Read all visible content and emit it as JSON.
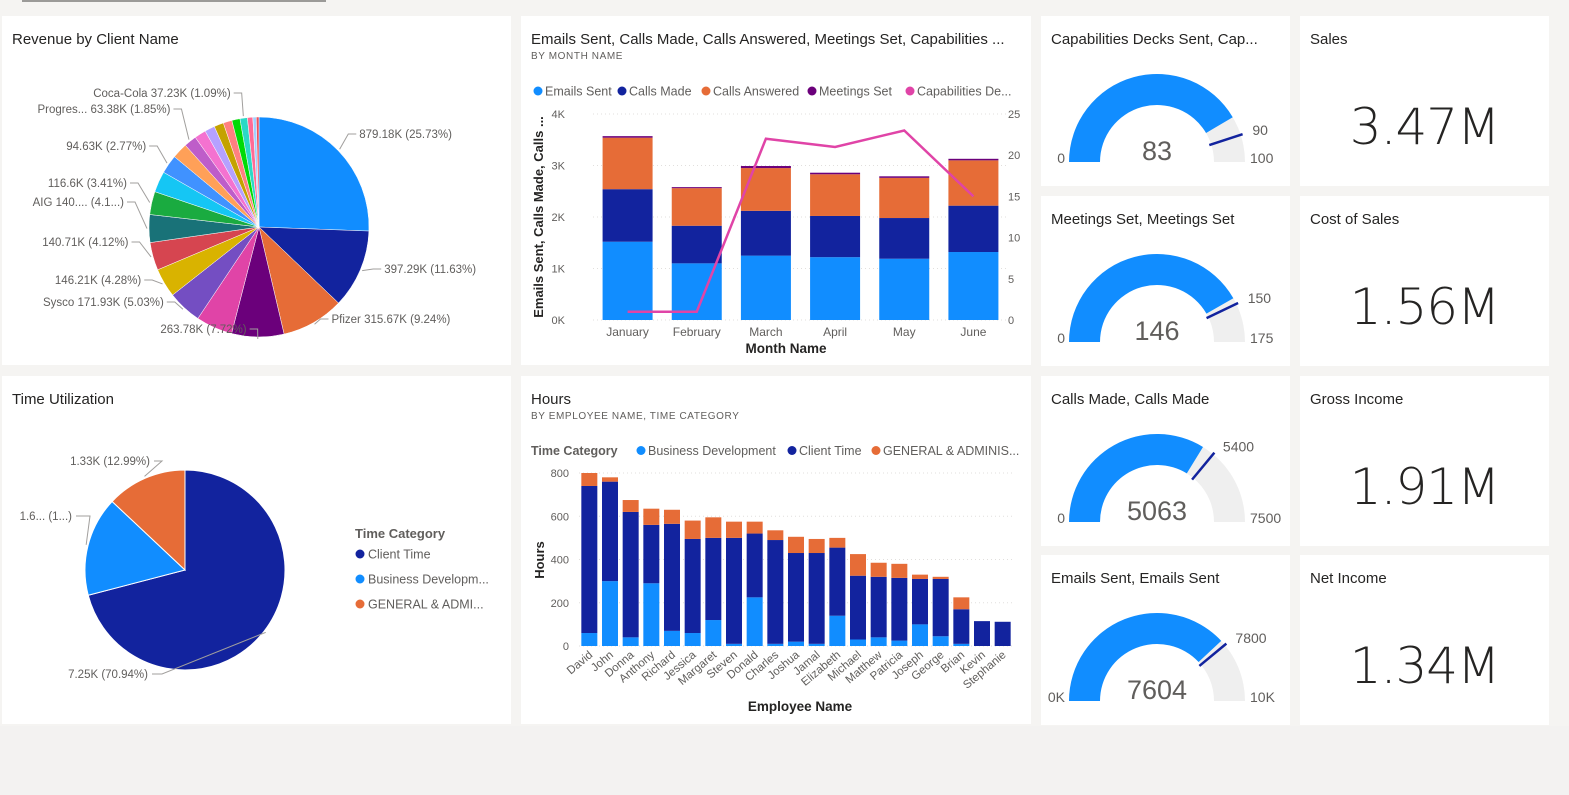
{
  "tiles": {
    "revenue": {
      "title": "Revenue by Client Name"
    },
    "emails_chart": {
      "title": "Emails Sent, Calls Made, Calls Answered, Meetings Set, Capabilities ...",
      "subtitle": "BY MONTH NAME"
    },
    "time_util": {
      "title": "Time Utilization"
    },
    "hours": {
      "title": "Hours",
      "subtitle": "BY EMPLOYEE NAME, TIME CATEGORY"
    },
    "gauge_capabilities": {
      "title": "Capabilities Decks Sent, Cap..."
    },
    "gauge_meetings": {
      "title": "Meetings Set, Meetings Set"
    },
    "gauge_calls": {
      "title": "Calls Made, Calls Made"
    },
    "gauge_emails": {
      "title": "Emails Sent, Emails Sent"
    },
    "card_sales": {
      "title": "Sales",
      "value": "3.47M"
    },
    "card_cost": {
      "title": "Cost of Sales",
      "value": "1.56M"
    },
    "card_gross": {
      "title": "Gross Income",
      "value": "1.91M"
    },
    "card_net": {
      "title": "Net Income",
      "value": "1.34M"
    }
  },
  "colors": {
    "light_blue": "#118dff",
    "dark_blue": "#12239e",
    "orange": "#e66c37",
    "purple": "#6b007b",
    "pink": "#e044a7",
    "gauge_track": "#efefef",
    "gauge_target": "#12239e"
  },
  "chart_data": [
    {
      "id": "revenue_pie",
      "type": "pie",
      "title": "Revenue by Client Name",
      "slices": [
        {
          "label": "879.18K (25.73%)",
          "value": 25.73,
          "color": "#118dff",
          "show_label": true
        },
        {
          "label": "397.29K (11.63%)",
          "value": 11.63,
          "color": "#12239e",
          "show_label": true
        },
        {
          "label": "Pfizer 315.67K (9.24%)",
          "value": 9.24,
          "color": "#e66c37",
          "show_label": true
        },
        {
          "label": "263.78K (7.72%)",
          "value": 7.72,
          "color": "#6b007b",
          "show_label": true
        },
        {
          "label": "",
          "value": 5.4,
          "color": "#e044a7",
          "show_label": false
        },
        {
          "label": "Sysco 171.93K (5.03%)",
          "value": 5.03,
          "color": "#744ec2",
          "show_label": true
        },
        {
          "label": "146.21K (4.28%)",
          "value": 4.28,
          "color": "#d9b300",
          "show_label": true
        },
        {
          "label": "140.71K (4.12%)",
          "value": 4.12,
          "color": "#d64550",
          "show_label": true
        },
        {
          "label": "AIG 140.... (4.1...)",
          "value": 4.1,
          "color": "#197278",
          "show_label": true
        },
        {
          "label": "116.6K (3.41%)",
          "value": 3.41,
          "color": "#1aab40",
          "show_label": true
        },
        {
          "label": "",
          "value": 3.1,
          "color": "#15c6f4",
          "show_label": false
        },
        {
          "label": "94.63K (2.77%)",
          "value": 2.77,
          "color": "#4092ff",
          "show_label": true
        },
        {
          "label": "",
          "value": 2.3,
          "color": "#ffa058",
          "show_label": false
        },
        {
          "label": "Progres... 63.38K (1.85%)",
          "value": 1.85,
          "color": "#be5dc9",
          "show_label": true
        },
        {
          "label": "",
          "value": 1.7,
          "color": "#f472d0",
          "show_label": false
        },
        {
          "label": "",
          "value": 1.5,
          "color": "#b5a1ff",
          "show_label": false
        },
        {
          "label": "",
          "value": 1.4,
          "color": "#c4a200",
          "show_label": false
        },
        {
          "label": "",
          "value": 1.3,
          "color": "#ff8080",
          "show_label": false
        },
        {
          "label": "",
          "value": 1.2,
          "color": "#00db05",
          "show_label": false
        },
        {
          "label": "Coca-Cola 37.23K (1.09%)",
          "value": 1.09,
          "color": "#2bd9c6",
          "show_label": true
        },
        {
          "label": "",
          "value": 0.8,
          "color": "#ff6b95",
          "show_label": false
        },
        {
          "label": "",
          "value": 0.5,
          "color": "#a0d1ff",
          "show_label": false
        },
        {
          "label": "",
          "value": 0.4,
          "color": "#e9535f",
          "show_label": false
        }
      ]
    },
    {
      "id": "activity_combo",
      "type": "bar",
      "title": "Emails Sent, Calls Made, Calls Answered, Meetings Set, Capabilities ...",
      "subtitle": "BY MONTH NAME",
      "xlabel": "Month Name",
      "ylabel": "Emails Sent, Calls Made, Calls ...",
      "categories": [
        "January",
        "February",
        "March",
        "April",
        "May",
        "June"
      ],
      "ylim": [
        0,
        4000
      ],
      "yticks": [
        "0K",
        "1K",
        "2K",
        "3K",
        "4K"
      ],
      "y2lim": [
        0,
        25
      ],
      "y2ticks": [
        "0",
        "5",
        "10",
        "15",
        "20",
        "25"
      ],
      "legend": [
        "Emails Sent",
        "Calls Made",
        "Calls Answered",
        "Meetings Set",
        "Capabilities De..."
      ],
      "series": [
        {
          "name": "Emails Sent",
          "color": "#118dff",
          "values": [
            1520,
            1100,
            1250,
            1220,
            1190,
            1320
          ]
        },
        {
          "name": "Calls Made",
          "color": "#12239e",
          "values": [
            1020,
            730,
            870,
            800,
            790,
            900
          ]
        },
        {
          "name": "Calls Answered",
          "color": "#e66c37",
          "values": [
            1000,
            730,
            830,
            810,
            780,
            880
          ]
        },
        {
          "name": "Meetings Set",
          "color": "#6b007b",
          "values": [
            30,
            20,
            40,
            30,
            30,
            30
          ]
        }
      ],
      "line_series": {
        "name": "Capabilities De...",
        "color": "#e044a7",
        "values": [
          1,
          1,
          22,
          21,
          23,
          15
        ],
        "axis": "secondary"
      }
    },
    {
      "id": "time_pie",
      "type": "pie",
      "title": "Time Utilization",
      "legend_title": "Time Category",
      "legend": [
        "Client Time",
        "Business Developm...",
        "GENERAL & ADMI..."
      ],
      "slices": [
        {
          "label": "7.25K (70.94%)",
          "value": 70.94,
          "color": "#12239e"
        },
        {
          "label": "1.6... (1...)",
          "value": 16.07,
          "color": "#118dff"
        },
        {
          "label": "1.33K (12.99%)",
          "value": 12.99,
          "color": "#e66c37"
        }
      ]
    },
    {
      "id": "hours_stacked",
      "type": "bar",
      "title": "Hours",
      "subtitle": "BY EMPLOYEE NAME, TIME CATEGORY",
      "xlabel": "Employee Name",
      "ylabel": "Hours",
      "legend_title": "Time Category",
      "legend": [
        "Business Development",
        "Client Time",
        "GENERAL & ADMINIS..."
      ],
      "ylim": [
        0,
        800
      ],
      "yticks": [
        "0",
        "200",
        "400",
        "600",
        "800"
      ],
      "categories": [
        "David",
        "John",
        "Donna",
        "Anthony",
        "Richard",
        "Jessica",
        "Margaret",
        "Steven",
        "Donald",
        "Charles",
        "Joshua",
        "Jamal",
        "Elizabeth",
        "Michael",
        "Matthew",
        "Patricia",
        "Joseph",
        "George",
        "Brian",
        "Kevin",
        "Stephanie"
      ],
      "series": [
        {
          "name": "Business Development",
          "color": "#118dff",
          "values": [
            60,
            300,
            40,
            290,
            70,
            60,
            120,
            10,
            225,
            10,
            20,
            10,
            140,
            30,
            40,
            25,
            100,
            45,
            10,
            0,
            0
          ]
        },
        {
          "name": "Client Time",
          "color": "#12239e",
          "values": [
            680,
            460,
            580,
            270,
            495,
            435,
            380,
            490,
            295,
            480,
            410,
            420,
            315,
            295,
            280,
            290,
            210,
            265,
            160,
            115,
            112
          ]
        },
        {
          "name": "GENERAL & ADMINIS...",
          "color": "#e66c37",
          "values": [
            60,
            20,
            55,
            75,
            65,
            85,
            95,
            75,
            55,
            45,
            75,
            65,
            45,
            100,
            65,
            65,
            20,
            10,
            55,
            0,
            0
          ]
        }
      ]
    },
    {
      "id": "gauge_capabilities",
      "type": "gauge",
      "value": 83,
      "min": 0,
      "max": 100,
      "target": 90,
      "value_label": "83",
      "min_label": "0",
      "max_label": "100",
      "target_label": "90"
    },
    {
      "id": "gauge_meetings",
      "type": "gauge",
      "value": 146,
      "min": 0,
      "max": 175,
      "target": 150,
      "value_label": "146",
      "min_label": "0",
      "max_label": "175",
      "target_label": "150"
    },
    {
      "id": "gauge_calls",
      "type": "gauge",
      "value": 5063,
      "min": 0,
      "max": 7500,
      "target": 5400,
      "value_label": "5063",
      "min_label": "0",
      "max_label": "7500",
      "target_label": "5400"
    },
    {
      "id": "gauge_emails",
      "type": "gauge",
      "value": 7604,
      "min": 0,
      "max": 10000,
      "target": 7800,
      "value_label": "7604",
      "min_label": "0K",
      "max_label": "10K",
      "target_label": "7800"
    }
  ]
}
